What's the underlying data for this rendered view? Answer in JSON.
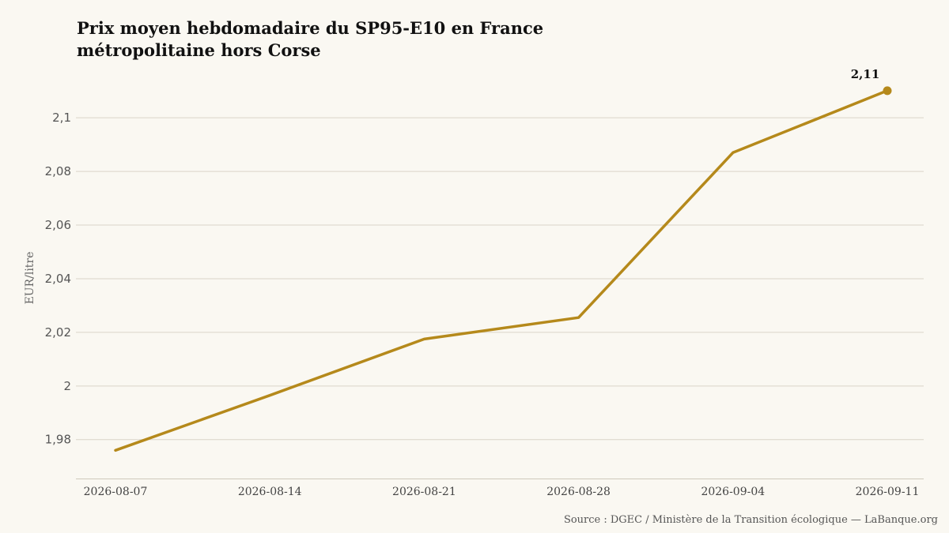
{
  "chart_data": {
    "type": "line",
    "title": "Prix moyen hebdomadaire du SP95-E10 en France métropolitaine hors Corse",
    "ylabel": "EUR/litre",
    "xlabel": "",
    "x": [
      "2026-08-07",
      "2026-08-14",
      "2026-08-21",
      "2026-08-28",
      "2026-09-04",
      "2026-09-11"
    ],
    "series": [
      {
        "values": [
          1.976,
          1.9965,
          2.0175,
          2.0255,
          2.087,
          2.1101
        ]
      }
    ],
    "ylim": [
      1.9655,
      2.118
    ],
    "y_ticks": [
      1.98,
      2.0,
      2.02,
      2.04,
      2.06,
      2.08,
      2.1
    ],
    "y_tick_labels": [
      "1,98",
      "2",
      "2,02",
      "2,04",
      "2,06",
      "2,08",
      "2,1"
    ],
    "end_label": "2,11",
    "grid": "horizontal",
    "legend": "none",
    "colors": {
      "line": "#b5891b",
      "grid": "#d9d4c8",
      "background": "#faf8f2"
    },
    "source": "Source : DGEC / Ministère de la Transition écologique — LaBanque.org"
  }
}
